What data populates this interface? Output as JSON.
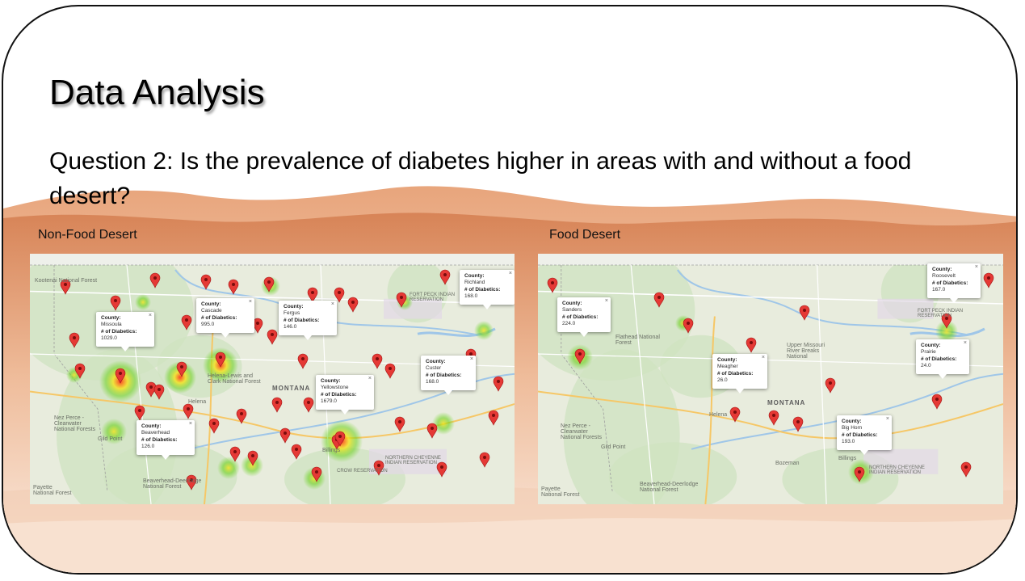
{
  "slide": {
    "title": "Data Analysis",
    "question": "Question 2:  Is the prevalence of diabetes higher in areas with and without a food desert?"
  },
  "maps": {
    "non_food_desert": {
      "label": "Non-Food Desert",
      "info_windows": [
        {
          "county_label": "County:",
          "county": "Missoula",
          "diabetics_label": "# of Diabetics:",
          "value": "1029.0"
        },
        {
          "county_label": "County:",
          "county": "Cascade",
          "diabetics_label": "# of Diabetics:",
          "value": "995.0"
        },
        {
          "county_label": "County:",
          "county": "Fergus",
          "diabetics_label": "# of Diabetics:",
          "value": "146.0"
        },
        {
          "county_label": "County:",
          "county": "Richland",
          "diabetics_label": "# of Diabetics:",
          "value": "168.0"
        },
        {
          "county_label": "County:",
          "county": "Custer",
          "diabetics_label": "# of Diabetics:",
          "value": "168.0"
        },
        {
          "county_label": "County:",
          "county": "Yellowstone",
          "diabetics_label": "# of Diabetics:",
          "value": "1679.0"
        },
        {
          "county_label": "County:",
          "county": "Beaverhead",
          "diabetics_label": "# of Diabetics:",
          "value": "126.0"
        }
      ],
      "places": [
        "Kootenai National Forest",
        "MONTANA",
        "Helena-Lewis and Clark National Forest",
        "Nez Perce - Clearwater National Forests",
        "Beaverhead-Deerlodge National Forest",
        "Payette National Forest",
        "FORT PECK INDIAN RESERVATION",
        "NORTHERN CHEYENNE INDIAN RESERVATION",
        "CROW RESERVATION",
        "Gild Point",
        "Helena",
        "Billings"
      ]
    },
    "food_desert": {
      "label": "Food Desert",
      "info_windows": [
        {
          "county_label": "County:",
          "county": "Sanders",
          "diabetics_label": "# of Diabetics:",
          "value": "224.0"
        },
        {
          "county_label": "County:",
          "county": "Meagher",
          "diabetics_label": "# of Diabetics:",
          "value": "26.0"
        },
        {
          "county_label": "County:",
          "county": "Roosevelt",
          "diabetics_label": "# of Diabetics:",
          "value": "167.0"
        },
        {
          "county_label": "County:",
          "county": "Prairie",
          "diabetics_label": "# of Diabetics:",
          "value": "24.0"
        },
        {
          "county_label": "County:",
          "county": "Big Horn",
          "diabetics_label": "# of Diabetics:",
          "value": "193.0"
        }
      ],
      "places": [
        "Flathead National Forest",
        "MONTANA",
        "Upper Missouri River Breaks National",
        "Nez Perce - Clearwater National Forests",
        "Beaverhead-Deerlodge National Forest",
        "Payette National Forest",
        "FORT PECK INDIAN RESERVATION",
        "NORTHERN CHEYENNE INDIAN RESERVATION",
        "Gild Point",
        "Helena",
        "Billings",
        "Bozeman"
      ]
    }
  },
  "colors": {
    "marker": "#e53935",
    "heat_red": "#ff3b1f",
    "heat_yellow": "#f5e31a",
    "heat_green": "#6bd11e",
    "desert": "#d9895a"
  }
}
